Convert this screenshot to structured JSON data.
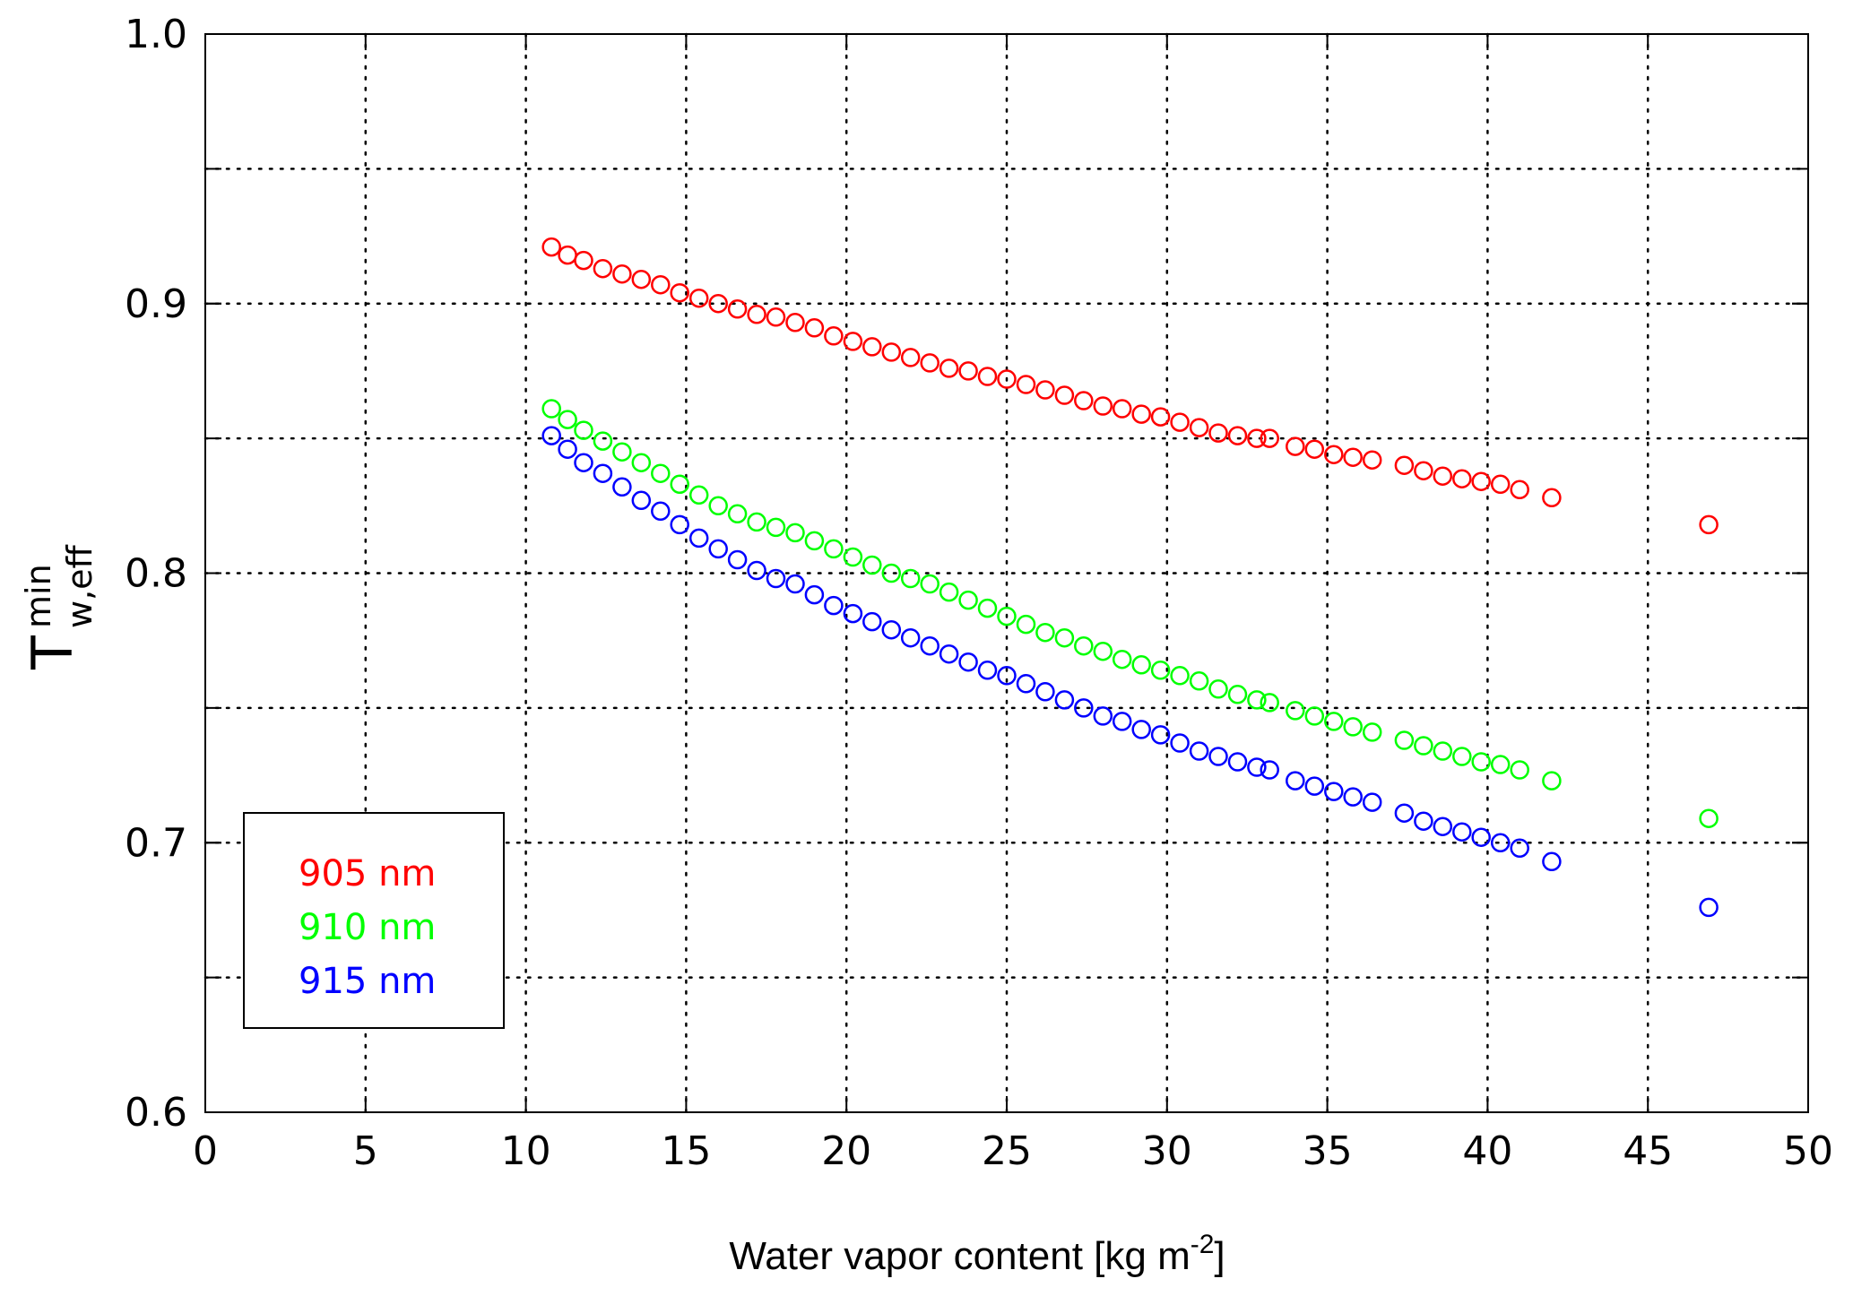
{
  "chart_data": {
    "type": "scatter",
    "title": "",
    "xlabel_main": "Water vapor content [kg m",
    "xlabel_sup": "-2",
    "xlabel_close": "]",
    "ylabel_main": "T",
    "ylabel_sup": "min",
    "ylabel_sub": "w,eff",
    "xlim": [
      0,
      50
    ],
    "ylim": [
      0.6,
      1.0
    ],
    "xticks": [
      0,
      5,
      10,
      15,
      20,
      25,
      30,
      35,
      40,
      45,
      50
    ],
    "xtick_labels": [
      "0",
      "5",
      "10",
      "15",
      "20",
      "25",
      "30",
      "35",
      "40",
      "45",
      "50"
    ],
    "yticks": [
      0.6,
      0.7,
      0.8,
      0.9,
      1.0
    ],
    "ytick_labels": [
      "0.6",
      "0.7",
      "0.8",
      "0.9",
      "1.0"
    ],
    "grid": true,
    "grid_style": "dotted",
    "legend_position": "bottom-left",
    "marker": "open-circle",
    "series": [
      {
        "name": "905 nm",
        "color": "#ff0000",
        "x": [
          10.8,
          11.3,
          11.8,
          12.4,
          13.0,
          13.6,
          14.2,
          14.8,
          15.4,
          16.0,
          16.6,
          17.2,
          17.8,
          18.4,
          19.0,
          19.6,
          20.2,
          20.8,
          21.4,
          22.0,
          22.6,
          23.2,
          23.8,
          24.4,
          25.0,
          25.6,
          26.2,
          26.8,
          27.4,
          28.0,
          28.6,
          29.2,
          29.8,
          30.4,
          31.0,
          31.6,
          32.2,
          32.8,
          33.2,
          34.0,
          34.6,
          35.2,
          35.8,
          36.4,
          37.4,
          38.0,
          38.6,
          39.2,
          39.8,
          40.4,
          41.0,
          42.0,
          46.9
        ],
        "y": [
          0.921,
          0.918,
          0.916,
          0.913,
          0.911,
          0.909,
          0.907,
          0.904,
          0.902,
          0.9,
          0.898,
          0.896,
          0.895,
          0.893,
          0.891,
          0.888,
          0.886,
          0.884,
          0.882,
          0.88,
          0.878,
          0.876,
          0.875,
          0.873,
          0.872,
          0.87,
          0.868,
          0.866,
          0.864,
          0.862,
          0.861,
          0.859,
          0.858,
          0.856,
          0.854,
          0.852,
          0.851,
          0.85,
          0.85,
          0.847,
          0.846,
          0.844,
          0.843,
          0.842,
          0.84,
          0.838,
          0.836,
          0.835,
          0.834,
          0.833,
          0.831,
          0.828,
          0.818
        ]
      },
      {
        "name": "910 nm",
        "color": "#00ff00",
        "x": [
          10.8,
          11.3,
          11.8,
          12.4,
          13.0,
          13.6,
          14.2,
          14.8,
          15.4,
          16.0,
          16.6,
          17.2,
          17.8,
          18.4,
          19.0,
          19.6,
          20.2,
          20.8,
          21.4,
          22.0,
          22.6,
          23.2,
          23.8,
          24.4,
          25.0,
          25.6,
          26.2,
          26.8,
          27.4,
          28.0,
          28.6,
          29.2,
          29.8,
          30.4,
          31.0,
          31.6,
          32.2,
          32.8,
          33.2,
          34.0,
          34.6,
          35.2,
          35.8,
          36.4,
          37.4,
          38.0,
          38.6,
          39.2,
          39.8,
          40.4,
          41.0,
          42.0,
          46.9
        ],
        "y": [
          0.861,
          0.857,
          0.853,
          0.849,
          0.845,
          0.841,
          0.837,
          0.833,
          0.829,
          0.825,
          0.822,
          0.819,
          0.817,
          0.815,
          0.812,
          0.809,
          0.806,
          0.803,
          0.8,
          0.798,
          0.796,
          0.793,
          0.79,
          0.787,
          0.784,
          0.781,
          0.778,
          0.776,
          0.773,
          0.771,
          0.768,
          0.766,
          0.764,
          0.762,
          0.76,
          0.757,
          0.755,
          0.753,
          0.752,
          0.749,
          0.747,
          0.745,
          0.743,
          0.741,
          0.738,
          0.736,
          0.734,
          0.732,
          0.73,
          0.729,
          0.727,
          0.723,
          0.709
        ]
      },
      {
        "name": "915 nm",
        "color": "#0000ff",
        "x": [
          10.8,
          11.3,
          11.8,
          12.4,
          13.0,
          13.6,
          14.2,
          14.8,
          15.4,
          16.0,
          16.6,
          17.2,
          17.8,
          18.4,
          19.0,
          19.6,
          20.2,
          20.8,
          21.4,
          22.0,
          22.6,
          23.2,
          23.8,
          24.4,
          25.0,
          25.6,
          26.2,
          26.8,
          27.4,
          28.0,
          28.6,
          29.2,
          29.8,
          30.4,
          31.0,
          31.6,
          32.2,
          32.8,
          33.2,
          34.0,
          34.6,
          35.2,
          35.8,
          36.4,
          37.4,
          38.0,
          38.6,
          39.2,
          39.8,
          40.4,
          41.0,
          42.0,
          46.9
        ],
        "y": [
          0.851,
          0.846,
          0.841,
          0.837,
          0.832,
          0.827,
          0.823,
          0.818,
          0.813,
          0.809,
          0.805,
          0.801,
          0.798,
          0.796,
          0.792,
          0.788,
          0.785,
          0.782,
          0.779,
          0.776,
          0.773,
          0.77,
          0.767,
          0.764,
          0.762,
          0.759,
          0.756,
          0.753,
          0.75,
          0.747,
          0.745,
          0.742,
          0.74,
          0.737,
          0.734,
          0.732,
          0.73,
          0.728,
          0.727,
          0.723,
          0.721,
          0.719,
          0.717,
          0.715,
          0.711,
          0.708,
          0.706,
          0.704,
          0.702,
          0.7,
          0.698,
          0.693,
          0.676
        ]
      }
    ]
  }
}
